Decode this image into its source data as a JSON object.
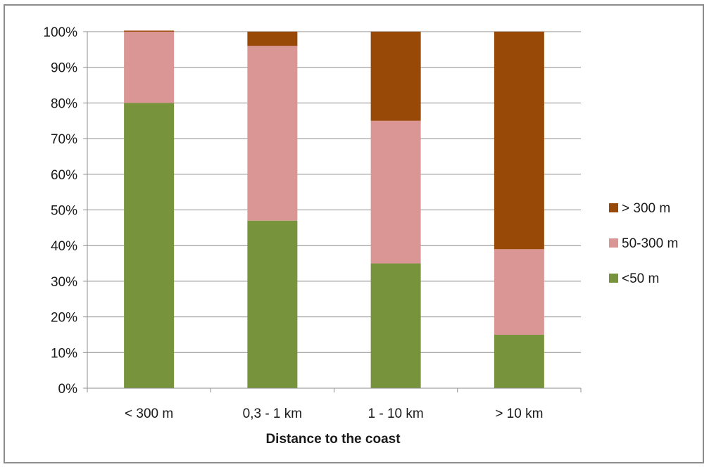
{
  "chart_data": {
    "type": "bar",
    "stacked": true,
    "percent": true,
    "categories": [
      "< 300 m",
      "0,3 - 1 km",
      "1 - 10 km",
      "> 10 km"
    ],
    "series": [
      {
        "name": "<50 m",
        "color": "#77933c",
        "values": [
          80,
          47,
          35,
          15
        ]
      },
      {
        "name": "50-300 m",
        "color": "#d99694",
        "values": [
          20,
          49,
          40,
          24
        ]
      },
      {
        "name": "> 300 m",
        "color": "#984807",
        "values": [
          0.3,
          4,
          25,
          61
        ]
      }
    ],
    "title": "",
    "xlabel": "Distance to the coast",
    "ylabel": "",
    "ylim": [
      0,
      100
    ],
    "yticks": [
      "0%",
      "10%",
      "20%",
      "30%",
      "40%",
      "50%",
      "60%",
      "70%",
      "80%",
      "90%",
      "100%"
    ],
    "grid": true,
    "legend_position": "right",
    "legend_order": [
      "> 300 m",
      "50-300 m",
      "<50 m"
    ]
  }
}
